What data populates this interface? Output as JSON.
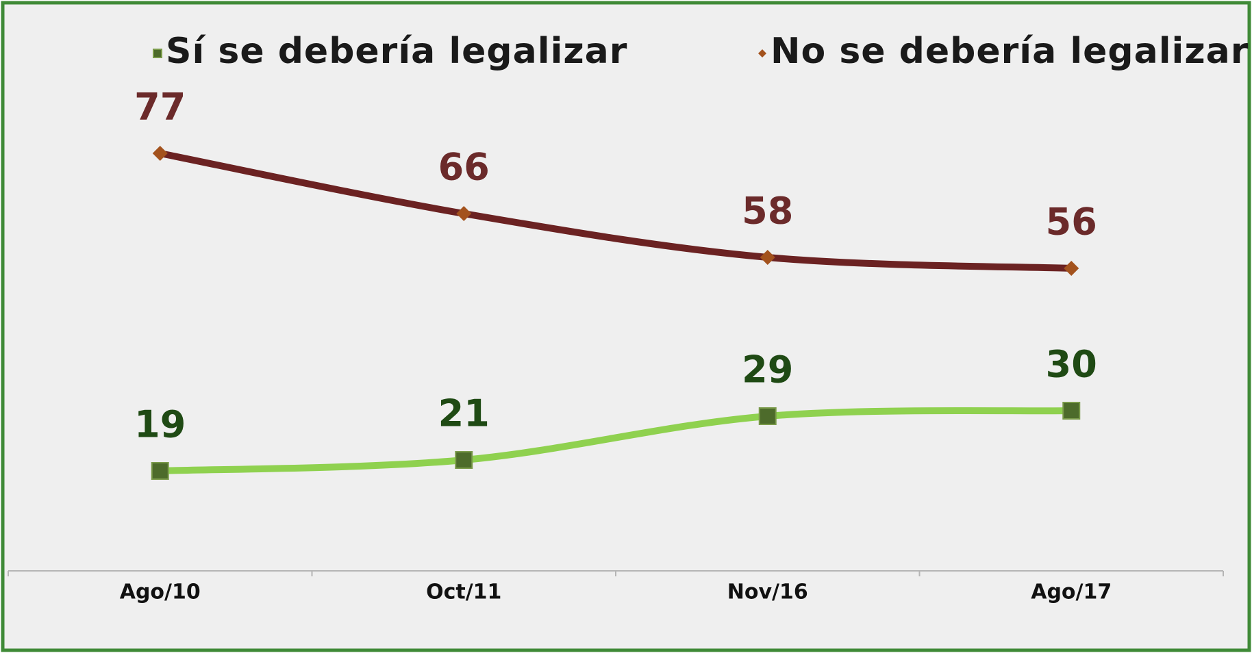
{
  "chart_data": {
    "type": "line",
    "categories": [
      "Ago/10",
      "Oct/11",
      "Nov/16",
      "Ago/17"
    ],
    "series": [
      {
        "name": "Sí se debería legalizar",
        "color": "#8fd14f",
        "marker_color": "#4d6b2b",
        "label_color": "#1f4a14",
        "marker": "square",
        "values": [
          19,
          21,
          29,
          30
        ]
      },
      {
        "name": "No se debería legalizar",
        "color": "#6b2222",
        "marker_color": "#a3521d",
        "label_color": "#6b2a2a",
        "marker": "diamond",
        "values": [
          77,
          66,
          58,
          56
        ]
      }
    ],
    "legend": "top",
    "grid": false
  }
}
